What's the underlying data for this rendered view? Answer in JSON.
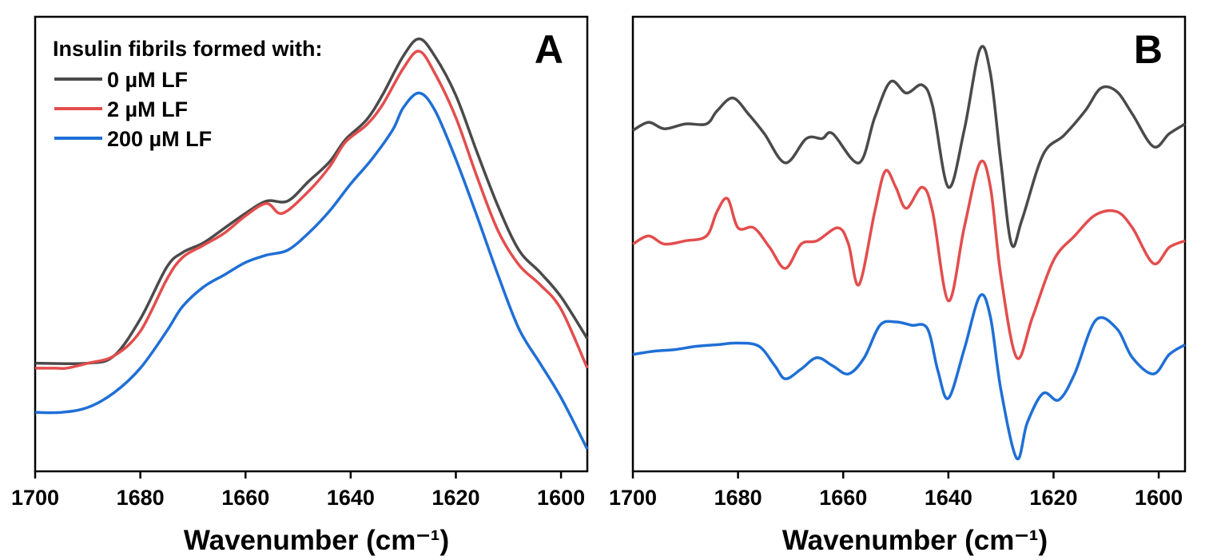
{
  "chart_data": [
    {
      "type": "line",
      "panel_label": "A",
      "xlabel": "Wavenumber (cm⁻¹)",
      "ylabel": "",
      "xlim": [
        1700,
        1595
      ],
      "x_reversed": true,
      "x_ticks": [
        1700,
        1680,
        1660,
        1640,
        1620,
        1600
      ],
      "y_ticks_visible": false,
      "grid": false,
      "legend": {
        "title": "Insulin fibrils formed with:",
        "placement": "top-left",
        "entries": [
          "0 µM LF",
          "2 µM LF",
          "200 µM LF"
        ]
      },
      "series": [
        {
          "name": "0 µM LF",
          "color": "#4a4a4a",
          "x": [
            1700,
            1690,
            1685,
            1680,
            1675,
            1672,
            1668,
            1664,
            1660,
            1656,
            1652,
            1648,
            1644,
            1641,
            1637,
            1634,
            1630,
            1627,
            1624,
            1620,
            1616,
            1612,
            1608,
            1604,
            1600,
            1595
          ],
          "y": [
            0.02,
            0.02,
            0.05,
            0.2,
            0.41,
            0.47,
            0.51,
            0.57,
            0.63,
            0.68,
            0.68,
            0.76,
            0.84,
            0.93,
            1.01,
            1.11,
            1.27,
            1.34,
            1.27,
            1.11,
            0.88,
            0.66,
            0.48,
            0.39,
            0.29,
            0.12
          ]
        },
        {
          "name": "2 µM LF",
          "color": "#e34d4d",
          "x": [
            1700,
            1696,
            1694,
            1690,
            1685,
            1680,
            1675,
            1672,
            1668,
            1664,
            1660,
            1656,
            1653,
            1648,
            1644,
            1641,
            1637,
            1634,
            1630,
            1627,
            1624,
            1620,
            1616,
            1612,
            1608,
            1604,
            1600,
            1595
          ],
          "y": [
            0.0,
            0.0,
            0.0,
            0.02,
            0.05,
            0.15,
            0.36,
            0.45,
            0.5,
            0.55,
            0.62,
            0.67,
            0.63,
            0.72,
            0.82,
            0.92,
            0.99,
            1.07,
            1.22,
            1.29,
            1.2,
            1.02,
            0.78,
            0.56,
            0.42,
            0.34,
            0.24,
            0.0
          ]
        },
        {
          "name": "200 µM LF",
          "color": "#1f6fd6",
          "x": [
            1700,
            1695,
            1690,
            1685,
            1680,
            1675,
            1672,
            1668,
            1664,
            1660,
            1656,
            1652,
            1648,
            1644,
            1640,
            1636,
            1632,
            1630,
            1627,
            1624,
            1620,
            1616,
            1612,
            1608,
            1604,
            1600,
            1595
          ],
          "y": [
            -0.18,
            -0.18,
            -0.16,
            -0.1,
            0.0,
            0.15,
            0.25,
            0.33,
            0.38,
            0.43,
            0.46,
            0.48,
            0.55,
            0.64,
            0.75,
            0.85,
            0.97,
            1.06,
            1.12,
            1.05,
            0.85,
            0.62,
            0.38,
            0.16,
            0.02,
            -0.12,
            -0.33
          ]
        }
      ]
    },
    {
      "type": "line",
      "panel_label": "B",
      "xlabel": "Wavenumber (cm⁻¹)",
      "ylabel": "",
      "xlim": [
        1700,
        1595
      ],
      "x_reversed": true,
      "x_ticks": [
        1700,
        1680,
        1660,
        1640,
        1620,
        1600
      ],
      "y_ticks_visible": false,
      "grid": false,
      "series": [
        {
          "name": "0 µM LF",
          "color": "#4a4a4a",
          "x": [
            1700,
            1697,
            1694,
            1690,
            1686,
            1684,
            1681,
            1678,
            1675,
            1671,
            1667,
            1664,
            1662,
            1657,
            1654,
            1651,
            1648,
            1645,
            1643,
            1640,
            1637,
            1634,
            1632,
            1630,
            1628,
            1626,
            1622,
            1618,
            1614,
            1611,
            1608,
            1605,
            1601,
            1598,
            1595
          ],
          "y": [
            0.1,
            0.15,
            0.11,
            0.14,
            0.14,
            0.22,
            0.3,
            0.2,
            0.08,
            -0.1,
            0.05,
            0.05,
            0.08,
            -0.1,
            0.18,
            0.4,
            0.33,
            0.38,
            0.25,
            -0.25,
            0.1,
            0.6,
            0.45,
            -0.1,
            -0.6,
            -0.45,
            -0.05,
            0.07,
            0.22,
            0.36,
            0.34,
            0.2,
            0.0,
            0.08,
            0.14
          ]
        },
        {
          "name": "2 µM LF",
          "color": "#e34d4d",
          "x": [
            1700,
            1697,
            1694,
            1690,
            1686,
            1684,
            1682,
            1680,
            1677,
            1674,
            1671,
            1668,
            1665,
            1661,
            1659,
            1657,
            1654,
            1652,
            1650,
            1648,
            1645,
            1643,
            1640,
            1637,
            1634,
            1632,
            1630,
            1627,
            1624,
            1620,
            1616,
            1612,
            1608,
            1605,
            1601,
            1598,
            1595
          ],
          "y": [
            -0.6,
            -0.55,
            -0.6,
            -0.58,
            -0.55,
            -0.4,
            -0.32,
            -0.5,
            -0.5,
            -0.62,
            -0.75,
            -0.6,
            -0.58,
            -0.5,
            -0.6,
            -0.85,
            -0.4,
            -0.15,
            -0.25,
            -0.38,
            -0.25,
            -0.4,
            -0.95,
            -0.5,
            -0.1,
            -0.25,
            -0.8,
            -1.3,
            -1.05,
            -0.7,
            -0.55,
            -0.42,
            -0.4,
            -0.5,
            -0.72,
            -0.62,
            -0.58
          ]
        },
        {
          "name": "200 µM LF",
          "color": "#1f6fd6",
          "x": [
            1700,
            1696,
            1692,
            1688,
            1684,
            1680,
            1676,
            1673,
            1671,
            1668,
            1665,
            1662,
            1659,
            1656,
            1653,
            1650,
            1647,
            1644,
            1642,
            1640,
            1637,
            1634,
            1632,
            1630,
            1627,
            1625,
            1622,
            1619,
            1616,
            1612,
            1608,
            1605,
            1601,
            1598,
            1595
          ],
          "y": [
            -1.28,
            -1.26,
            -1.25,
            -1.23,
            -1.22,
            -1.21,
            -1.23,
            -1.35,
            -1.43,
            -1.37,
            -1.3,
            -1.35,
            -1.4,
            -1.3,
            -1.1,
            -1.08,
            -1.1,
            -1.12,
            -1.38,
            -1.55,
            -1.25,
            -0.92,
            -1.05,
            -1.5,
            -1.92,
            -1.7,
            -1.52,
            -1.56,
            -1.4,
            -1.07,
            -1.12,
            -1.3,
            -1.4,
            -1.28,
            -1.22
          ]
        }
      ]
    }
  ]
}
